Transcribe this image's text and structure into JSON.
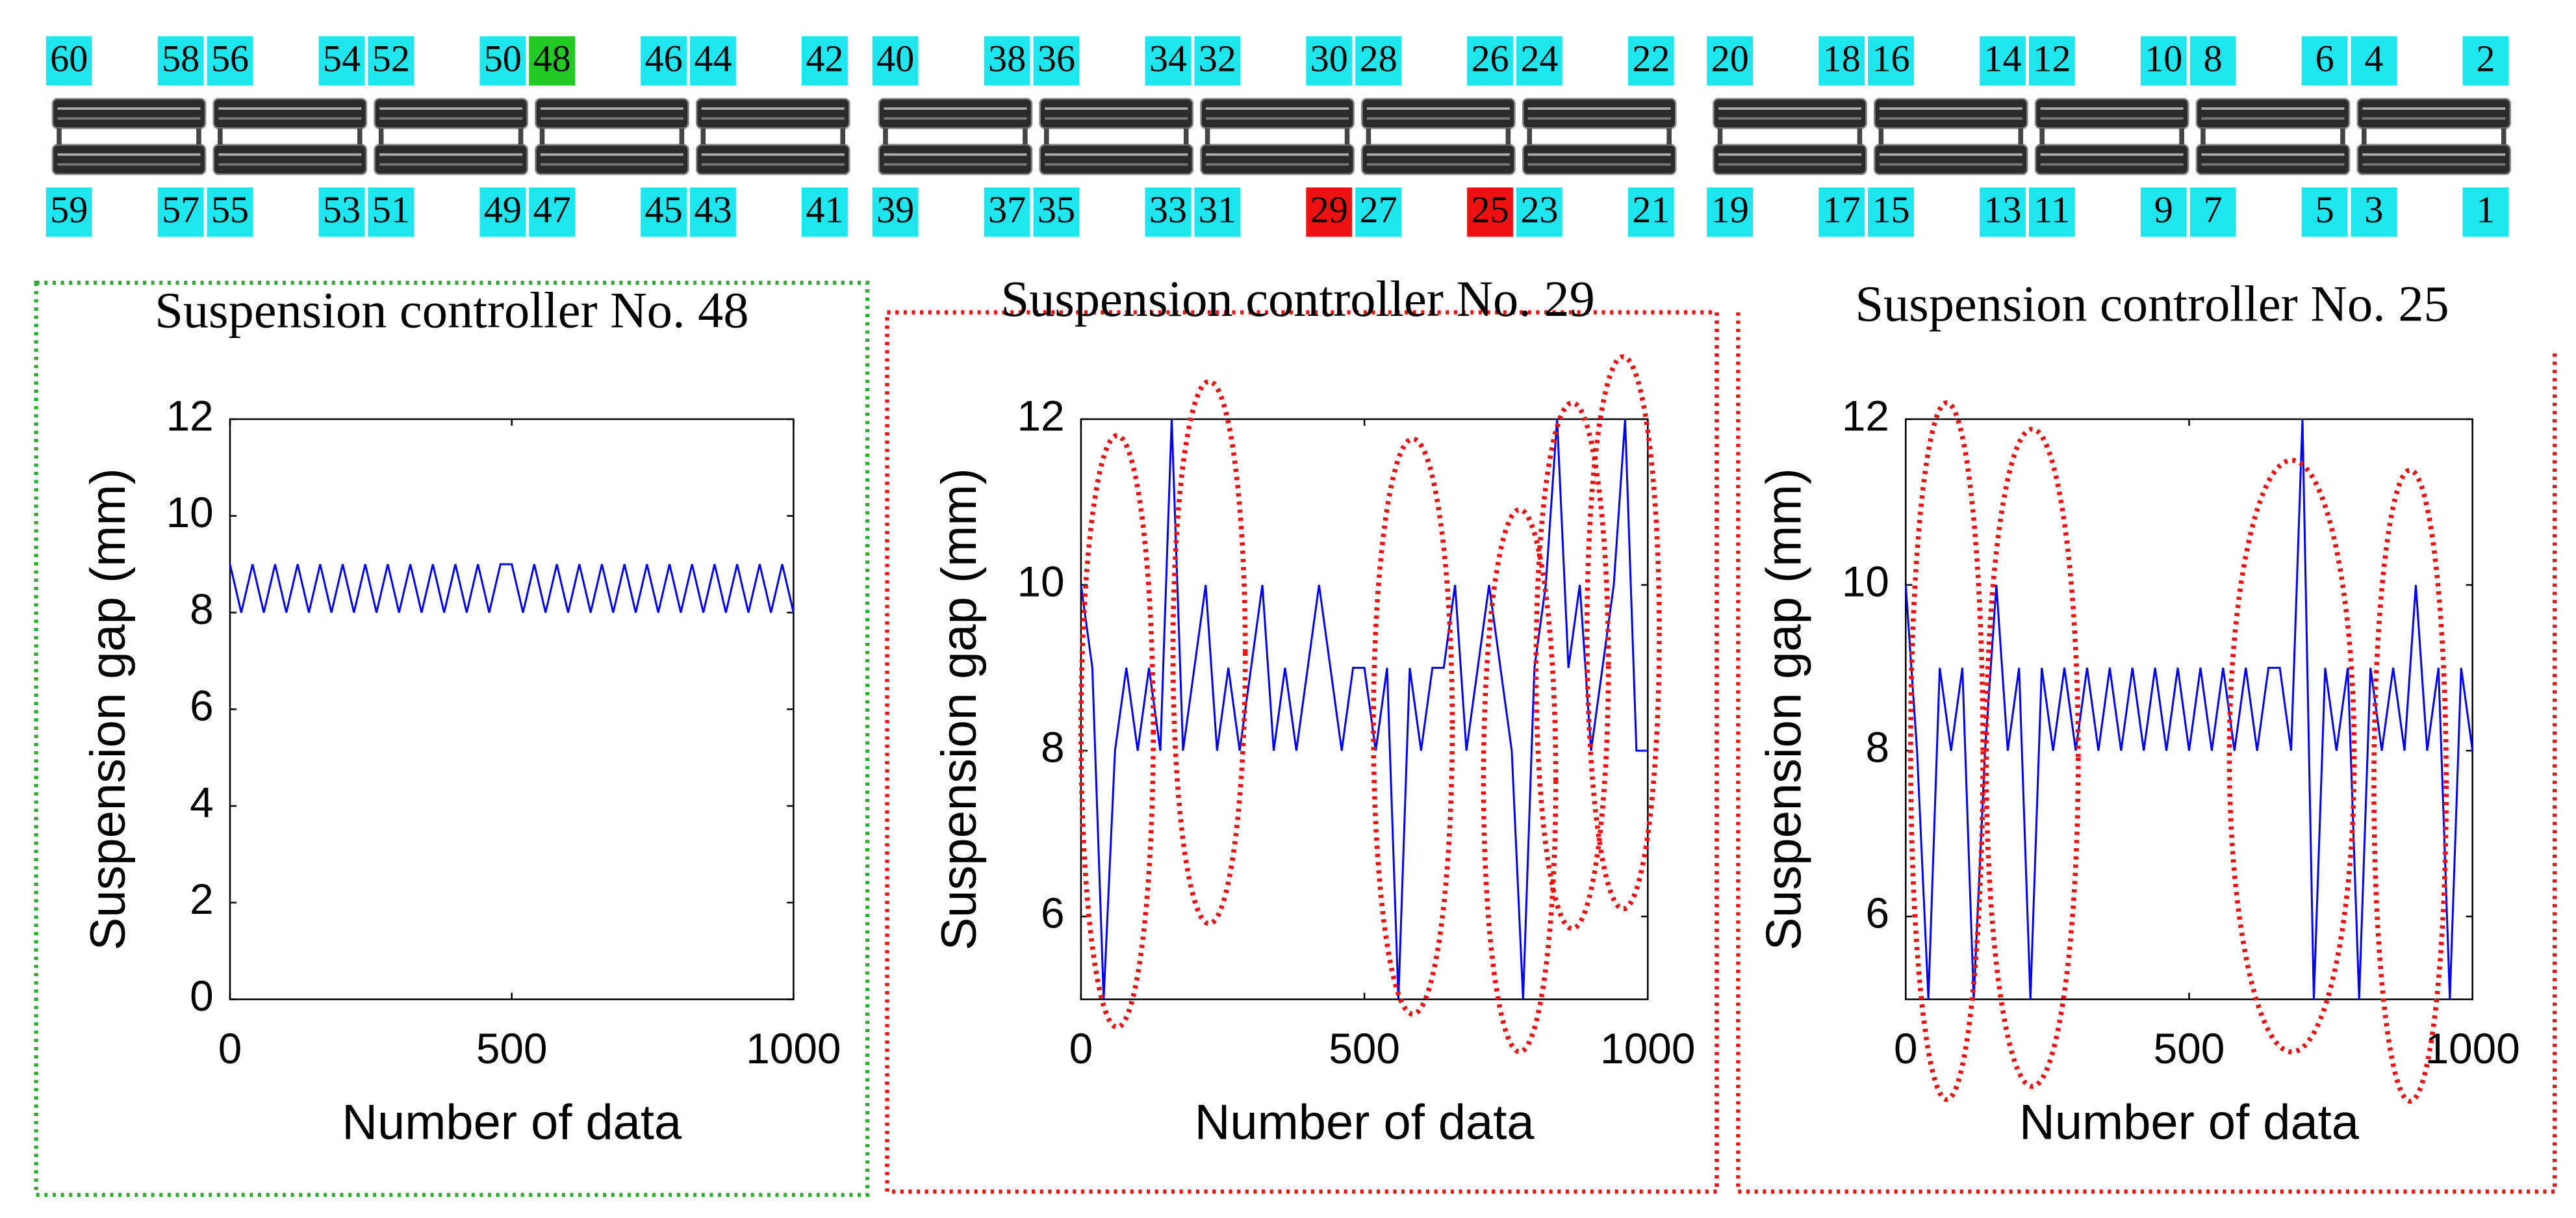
{
  "controllers": {
    "top_row": [
      {
        "label": "60",
        "color": "#1ee6ef"
      },
      {
        "label": "58",
        "color": "#1ee6ef"
      },
      {
        "label": "56",
        "color": "#1ee6ef"
      },
      {
        "label": "54",
        "color": "#1ee6ef"
      },
      {
        "label": "52",
        "color": "#1ee6ef"
      },
      {
        "label": "50",
        "color": "#1ee6ef"
      },
      {
        "label": "48",
        "color": "#22c922"
      },
      {
        "label": "46",
        "color": "#1ee6ef"
      },
      {
        "label": "44",
        "color": "#1ee6ef"
      },
      {
        "label": "42",
        "color": "#1ee6ef"
      },
      {
        "label": "40",
        "color": "#1ee6ef"
      },
      {
        "label": "38",
        "color": "#1ee6ef"
      },
      {
        "label": "36",
        "color": "#1ee6ef"
      },
      {
        "label": "34",
        "color": "#1ee6ef"
      },
      {
        "label": "32",
        "color": "#1ee6ef"
      },
      {
        "label": "30",
        "color": "#1ee6ef"
      },
      {
        "label": "28",
        "color": "#1ee6ef"
      },
      {
        "label": "26",
        "color": "#1ee6ef"
      },
      {
        "label": "24",
        "color": "#1ee6ef"
      },
      {
        "label": "22",
        "color": "#1ee6ef"
      },
      {
        "label": "20",
        "color": "#1ee6ef"
      },
      {
        "label": "18",
        "color": "#1ee6ef"
      },
      {
        "label": "16",
        "color": "#1ee6ef"
      },
      {
        "label": "14",
        "color": "#1ee6ef"
      },
      {
        "label": "12",
        "color": "#1ee6ef"
      },
      {
        "label": "10",
        "color": "#1ee6ef"
      },
      {
        "label": "8",
        "color": "#1ee6ef"
      },
      {
        "label": "6",
        "color": "#1ee6ef"
      },
      {
        "label": "4",
        "color": "#1ee6ef"
      },
      {
        "label": "2",
        "color": "#1ee6ef"
      }
    ],
    "bottom_row": [
      {
        "label": "59",
        "color": "#1ee6ef"
      },
      {
        "label": "57",
        "color": "#1ee6ef"
      },
      {
        "label": "55",
        "color": "#1ee6ef"
      },
      {
        "label": "53",
        "color": "#1ee6ef"
      },
      {
        "label": "51",
        "color": "#1ee6ef"
      },
      {
        "label": "49",
        "color": "#1ee6ef"
      },
      {
        "label": "47",
        "color": "#1ee6ef"
      },
      {
        "label": "45",
        "color": "#1ee6ef"
      },
      {
        "label": "43",
        "color": "#1ee6ef"
      },
      {
        "label": "41",
        "color": "#1ee6ef"
      },
      {
        "label": "39",
        "color": "#1ee6ef"
      },
      {
        "label": "37",
        "color": "#1ee6ef"
      },
      {
        "label": "35",
        "color": "#1ee6ef"
      },
      {
        "label": "33",
        "color": "#1ee6ef"
      },
      {
        "label": "31",
        "color": "#1ee6ef"
      },
      {
        "label": "29",
        "color": "#ee1111"
      },
      {
        "label": "27",
        "color": "#1ee6ef"
      },
      {
        "label": "25",
        "color": "#ee1111"
      },
      {
        "label": "23",
        "color": "#1ee6ef"
      },
      {
        "label": "21",
        "color": "#1ee6ef"
      },
      {
        "label": "19",
        "color": "#1ee6ef"
      },
      {
        "label": "17",
        "color": "#1ee6ef"
      },
      {
        "label": "15",
        "color": "#1ee6ef"
      },
      {
        "label": "13",
        "color": "#1ee6ef"
      },
      {
        "label": "11",
        "color": "#1ee6ef"
      },
      {
        "label": "9",
        "color": "#1ee6ef"
      },
      {
        "label": "7",
        "color": "#1ee6ef"
      },
      {
        "label": "5",
        "color": "#1ee6ef"
      },
      {
        "label": "3",
        "color": "#1ee6ef"
      },
      {
        "label": "1",
        "color": "#1ee6ef"
      }
    ]
  },
  "chart_data": [
    {
      "type": "line",
      "title": "Suspension controller No. 48",
      "xlabel": "Number of data",
      "ylabel": "Suspension gap (mm)",
      "color": "#0000ff",
      "x": [
        0,
        20,
        40,
        60,
        80,
        100,
        120,
        140,
        160,
        180,
        200,
        220,
        240,
        260,
        280,
        300,
        320,
        340,
        360,
        380,
        400,
        420,
        440,
        460,
        480,
        500,
        520,
        540,
        560,
        580,
        600,
        620,
        640,
        660,
        680,
        700,
        720,
        740,
        760,
        780,
        800,
        820,
        840,
        860,
        880,
        900,
        920,
        940,
        960,
        980,
        1000
      ],
      "values": [
        9,
        8,
        9,
        8,
        9,
        8,
        9,
        8,
        9,
        8,
        9,
        8,
        9,
        8,
        9,
        8,
        9,
        8,
        9,
        8,
        9,
        8,
        9,
        8,
        9,
        9,
        8,
        9,
        8,
        9,
        8,
        9,
        8,
        9,
        8,
        9,
        8,
        9,
        8,
        9,
        8,
        9,
        8,
        9,
        8,
        9,
        8,
        9,
        8,
        9,
        8
      ],
      "xlim": [
        0,
        1000
      ],
      "xticks": [
        0,
        500,
        1000
      ],
      "ylim": [
        0,
        12
      ],
      "yticks": [
        0,
        2,
        4,
        6,
        8,
        10,
        12
      ]
    },
    {
      "type": "line",
      "title": "Suspension controller No. 29",
      "xlabel": "Number of data",
      "ylabel": "Suspension gap (mm)",
      "color": "#0000ff",
      "x": [
        0,
        20,
        40,
        60,
        80,
        100,
        120,
        140,
        160,
        180,
        200,
        220,
        240,
        260,
        280,
        300,
        320,
        340,
        360,
        380,
        400,
        420,
        440,
        460,
        480,
        500,
        520,
        540,
        560,
        580,
        600,
        620,
        640,
        660,
        680,
        700,
        720,
        740,
        760,
        780,
        800,
        820,
        840,
        860,
        880,
        900,
        920,
        940,
        960,
        980,
        1000
      ],
      "values": [
        10,
        9,
        5,
        8,
        9,
        8,
        9,
        8,
        12,
        8,
        9,
        10,
        8,
        9,
        8,
        9,
        10,
        8,
        9,
        8,
        9,
        10,
        9,
        8,
        9,
        9,
        8,
        9,
        5,
        9,
        8,
        9,
        9,
        10,
        8,
        9,
        10,
        9,
        8,
        5,
        9,
        10,
        12,
        9,
        10,
        8,
        9,
        10,
        12,
        8,
        8
      ],
      "xlim": [
        0,
        1000
      ],
      "xticks": [
        0,
        500,
        1000
      ],
      "ylim": [
        5,
        12
      ],
      "yticks": [
        6,
        8,
        10,
        12
      ]
    },
    {
      "type": "line",
      "title": "Suspension controller No. 25",
      "xlabel": "Number of data",
      "ylabel": "Suspension gap (mm)",
      "color": "#0000ff",
      "x": [
        0,
        20,
        40,
        60,
        80,
        100,
        120,
        140,
        160,
        180,
        200,
        220,
        240,
        260,
        280,
        300,
        320,
        340,
        360,
        380,
        400,
        420,
        440,
        460,
        480,
        500,
        520,
        540,
        560,
        580,
        600,
        620,
        640,
        660,
        680,
        700,
        720,
        740,
        760,
        780,
        800,
        820,
        840,
        860,
        880,
        900,
        920,
        940,
        960,
        980,
        1000
      ],
      "values": [
        10,
        8,
        5,
        9,
        8,
        9,
        5,
        8,
        10,
        8,
        9,
        5,
        9,
        8,
        9,
        8,
        9,
        8,
        9,
        8,
        9,
        8,
        9,
        8,
        9,
        8,
        9,
        8,
        9,
        8,
        9,
        8,
        9,
        9,
        8,
        12,
        5,
        9,
        8,
        9,
        5,
        9,
        8,
        9,
        8,
        10,
        8,
        9,
        5,
        9,
        8
      ],
      "xlim": [
        0,
        1000
      ],
      "xticks": [
        0,
        500,
        1000
      ],
      "ylim": [
        5,
        12
      ],
      "yticks": [
        6,
        8,
        10,
        12
      ]
    }
  ]
}
